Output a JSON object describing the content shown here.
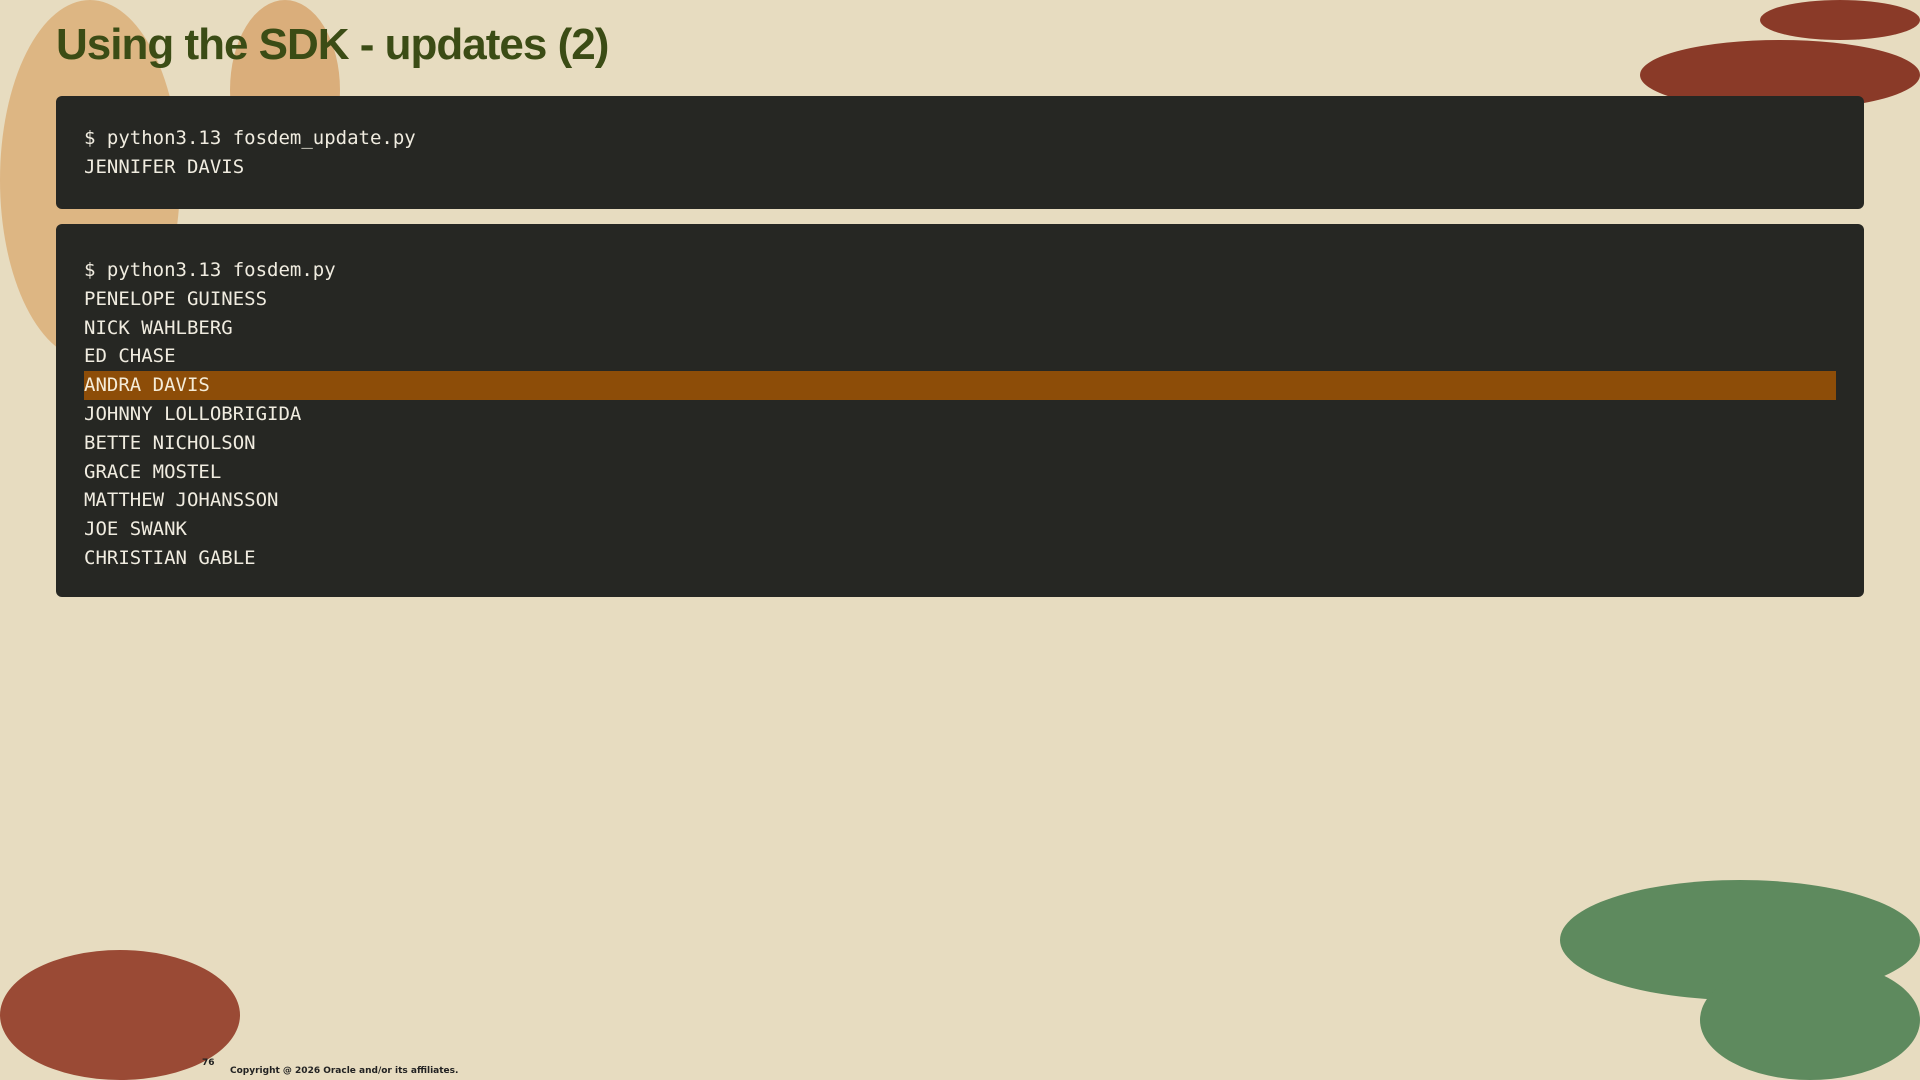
{
  "slide": {
    "title": "Using the SDK - updates (2)",
    "page_number": "76",
    "copyright": "Copyright @ 2026 Oracle and/or its affiliates."
  },
  "terminal1": {
    "lines": [
      "$ python3.13 fosdem_update.py",
      "JENNIFER DAVIS"
    ]
  },
  "terminal2": {
    "lines": [
      "$ python3.13 fosdem.py",
      "PENELOPE GUINESS",
      "NICK WAHLBERG",
      "ED CHASE",
      "ANDRA DAVIS",
      "JOHNNY LOLLOBRIGIDA",
      "BETTE NICHOLSON",
      "GRACE MOSTEL",
      "MATTHEW JOHANSSON",
      "JOE SWANK",
      "CHRISTIAN GABLE"
    ],
    "highlighted_line": "ANDRA DAVIS"
  },
  "colors": {
    "title": "#3b4c15",
    "terminal_bg": "#262723",
    "highlight": "#8d4d08",
    "background": "#e7dcc0"
  }
}
